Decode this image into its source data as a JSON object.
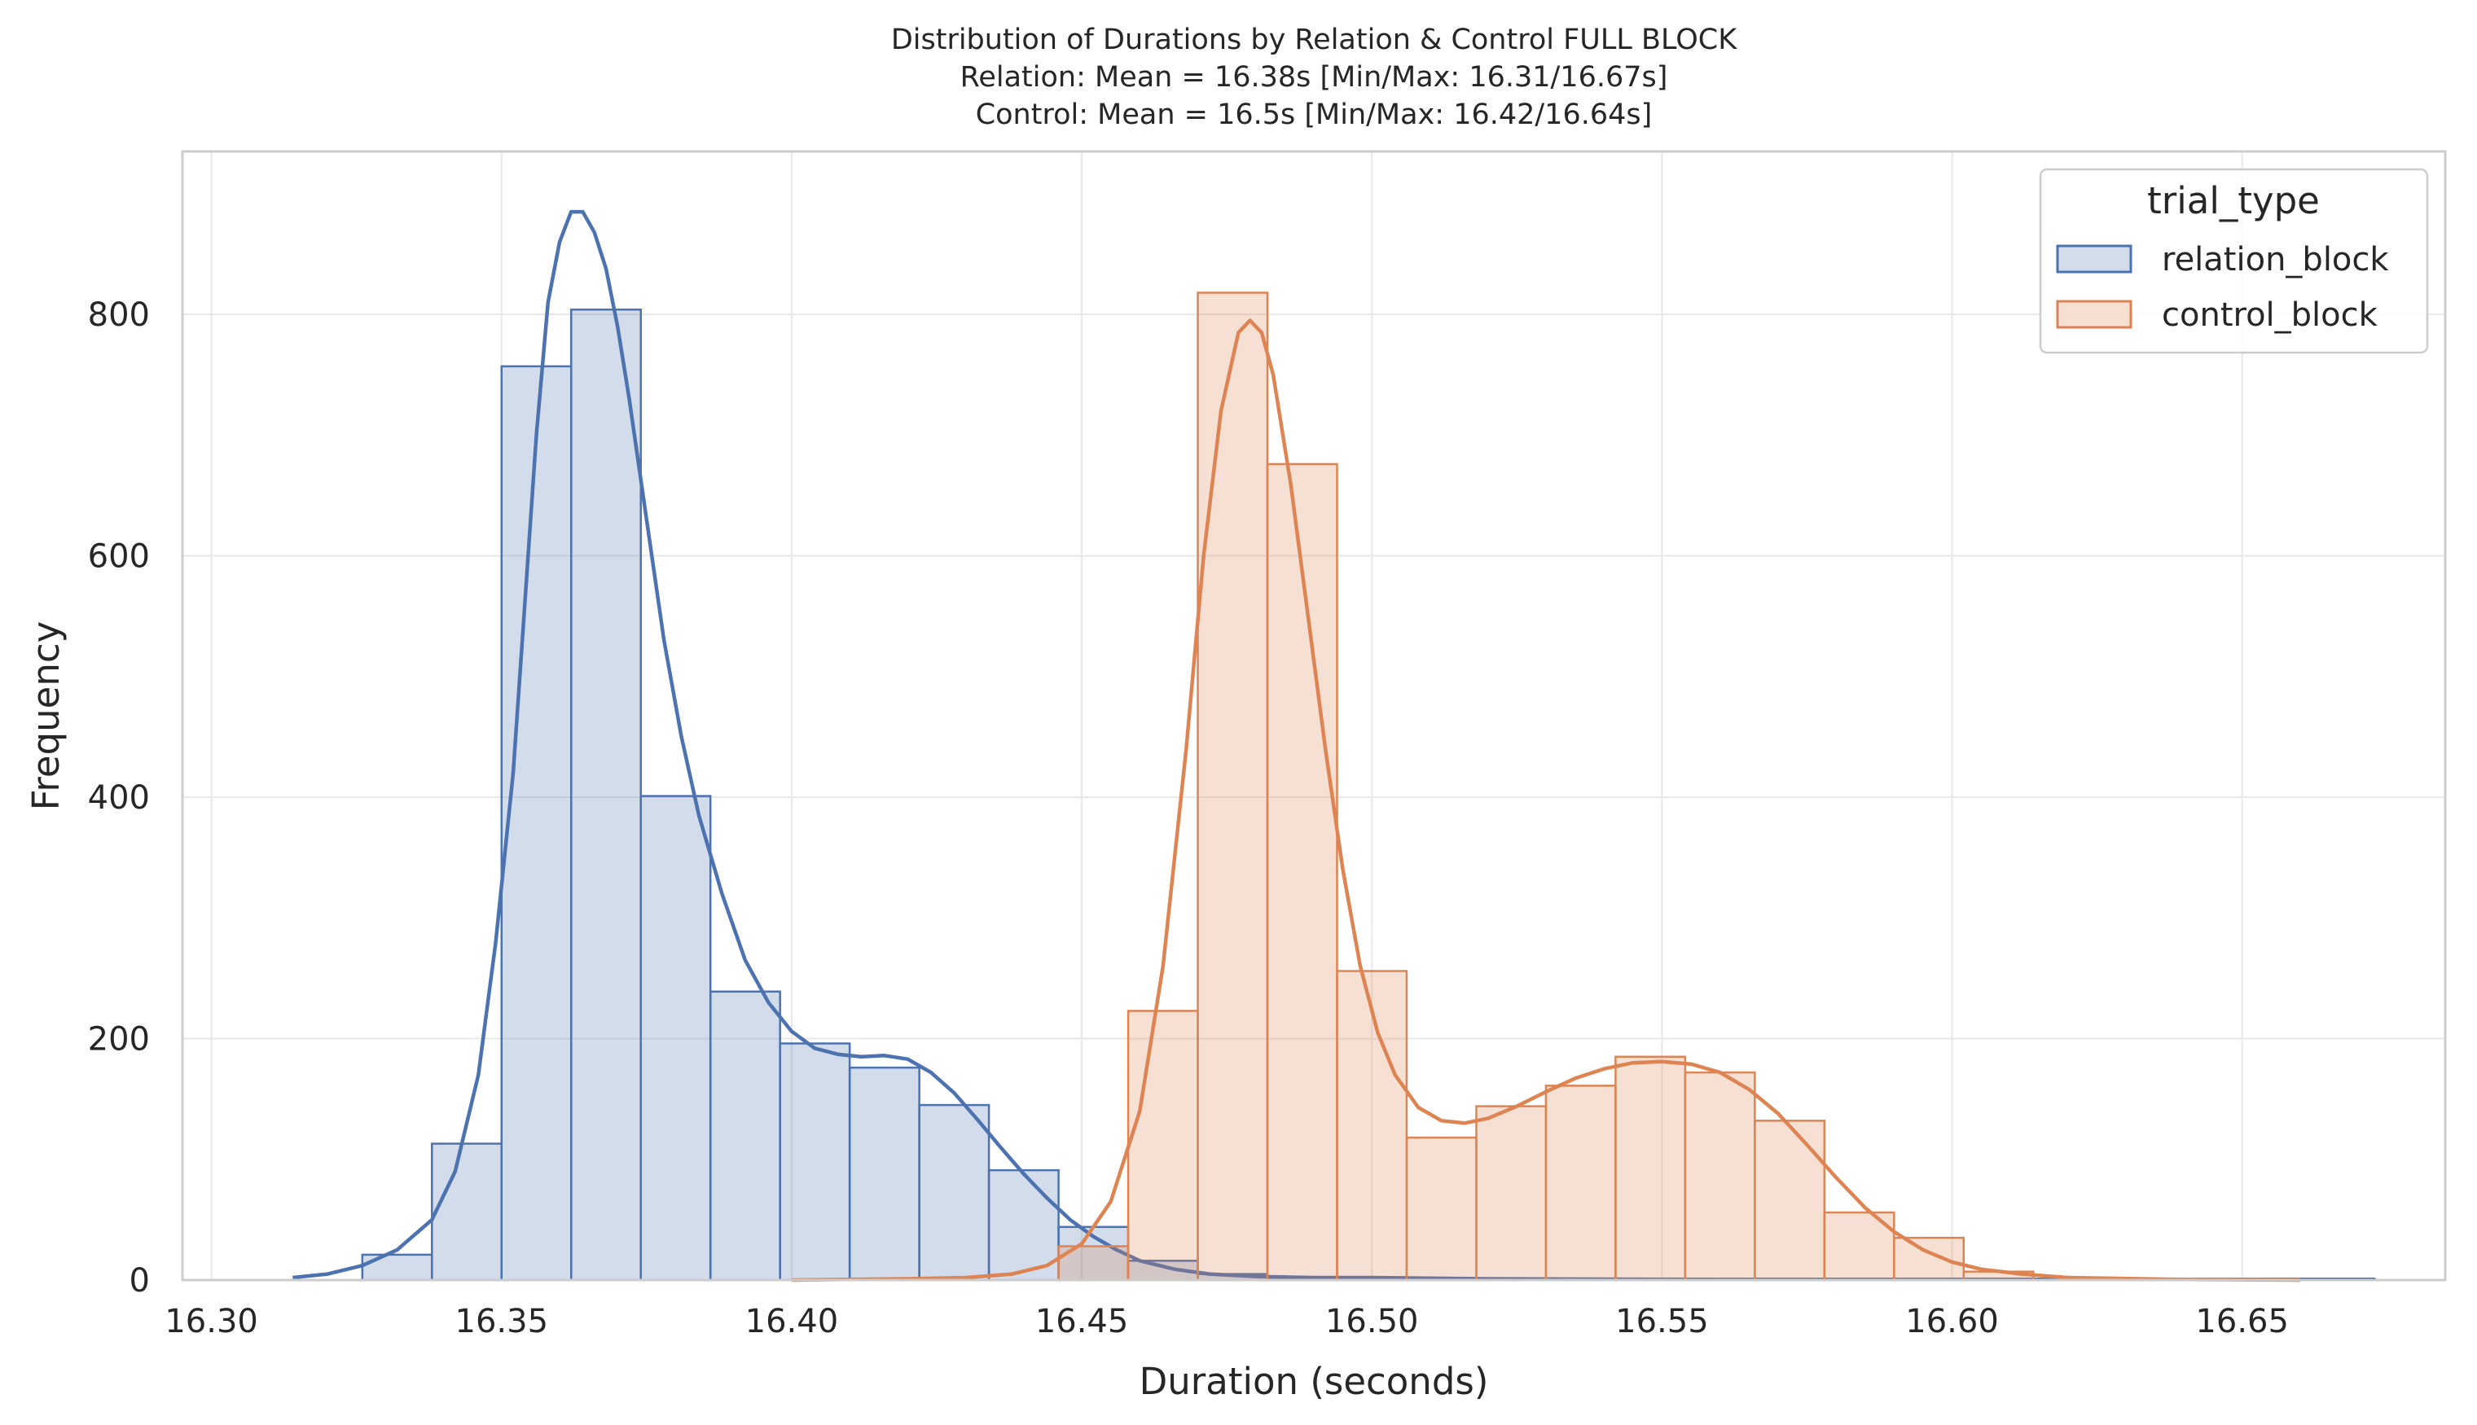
{
  "chart_data": {
    "type": "histogram",
    "title_lines": [
      "Distribution of Durations by Relation & Control FULL BLOCK",
      "Relation: Mean = 16.38s [Min/Max: 16.31/16.67s]",
      "Control: Mean = 16.5s [Min/Max: 16.42/16.64s]"
    ],
    "xlabel": "Duration (seconds)",
    "ylabel": "Frequency",
    "xlim": [
      16.295,
      16.685
    ],
    "ylim": [
      0,
      935
    ],
    "x_ticks": [
      16.3,
      16.35,
      16.4,
      16.45,
      16.5,
      16.55,
      16.6,
      16.65
    ],
    "x_tick_labels": [
      "16.30",
      "16.35",
      "16.40",
      "16.45",
      "16.50",
      "16.55",
      "16.60",
      "16.65"
    ],
    "y_ticks": [
      0,
      200,
      400,
      600,
      800
    ],
    "y_tick_labels": [
      "0",
      "200",
      "400",
      "600",
      "800"
    ],
    "grid": true,
    "legend": {
      "title": "trial_type",
      "position": "top-right",
      "entries": [
        "relation_block",
        "control_block"
      ]
    },
    "series": [
      {
        "name": "relation_block",
        "color": "#4c72b0",
        "fill": "rgba(76,114,176,0.25)",
        "bins": [
          {
            "x0": 16.326,
            "x1": 16.338,
            "count": 21
          },
          {
            "x0": 16.338,
            "x1": 16.35,
            "count": 113
          },
          {
            "x0": 16.35,
            "x1": 16.362,
            "count": 757
          },
          {
            "x0": 16.362,
            "x1": 16.374,
            "count": 804
          },
          {
            "x0": 16.374,
            "x1": 16.386,
            "count": 401
          },
          {
            "x0": 16.386,
            "x1": 16.398,
            "count": 239
          },
          {
            "x0": 16.398,
            "x1": 16.41,
            "count": 196
          },
          {
            "x0": 16.41,
            "x1": 16.422,
            "count": 176
          },
          {
            "x0": 16.422,
            "x1": 16.434,
            "count": 145
          },
          {
            "x0": 16.434,
            "x1": 16.446,
            "count": 91
          },
          {
            "x0": 16.446,
            "x1": 16.458,
            "count": 44
          },
          {
            "x0": 16.458,
            "x1": 16.47,
            "count": 16
          },
          {
            "x0": 16.47,
            "x1": 16.482,
            "count": 5
          },
          {
            "x0": 16.482,
            "x1": 16.494,
            "count": 2
          },
          {
            "x0": 16.494,
            "x1": 16.506,
            "count": 1
          },
          {
            "x0": 16.506,
            "x1": 16.518,
            "count": 1
          }
        ],
        "kde": [
          [
            16.314,
            2
          ],
          [
            16.32,
            5
          ],
          [
            16.326,
            12
          ],
          [
            16.332,
            25
          ],
          [
            16.338,
            50
          ],
          [
            16.342,
            90
          ],
          [
            16.346,
            170
          ],
          [
            16.349,
            280
          ],
          [
            16.352,
            420
          ],
          [
            16.354,
            560
          ],
          [
            16.356,
            700
          ],
          [
            16.358,
            810
          ],
          [
            16.36,
            860
          ],
          [
            16.362,
            885
          ],
          [
            16.364,
            885
          ],
          [
            16.366,
            868
          ],
          [
            16.368,
            838
          ],
          [
            16.37,
            790
          ],
          [
            16.372,
            730
          ],
          [
            16.375,
            630
          ],
          [
            16.378,
            530
          ],
          [
            16.381,
            450
          ],
          [
            16.384,
            385
          ],
          [
            16.388,
            320
          ],
          [
            16.392,
            265
          ],
          [
            16.396,
            230
          ],
          [
            16.4,
            206
          ],
          [
            16.404,
            192
          ],
          [
            16.408,
            187
          ],
          [
            16.412,
            185
          ],
          [
            16.416,
            186
          ],
          [
            16.42,
            183
          ],
          [
            16.424,
            172
          ],
          [
            16.428,
            155
          ],
          [
            16.432,
            133
          ],
          [
            16.436,
            110
          ],
          [
            16.44,
            88
          ],
          [
            16.444,
            68
          ],
          [
            16.448,
            50
          ],
          [
            16.452,
            36
          ],
          [
            16.456,
            25
          ],
          [
            16.46,
            16
          ],
          [
            16.466,
            9
          ],
          [
            16.472,
            5
          ],
          [
            16.48,
            3
          ],
          [
            16.49,
            2
          ],
          [
            16.5,
            2
          ],
          [
            16.52,
            1
          ],
          [
            16.56,
            0.5
          ],
          [
            16.62,
            0.5
          ],
          [
            16.673,
            0.5
          ]
        ]
      },
      {
        "name": "control_block",
        "color": "#dd8452",
        "fill": "rgba(221,132,82,0.25)",
        "bins": [
          {
            "x0": 16.446,
            "x1": 16.458,
            "count": 28
          },
          {
            "x0": 16.458,
            "x1": 16.47,
            "count": 223
          },
          {
            "x0": 16.47,
            "x1": 16.482,
            "count": 818
          },
          {
            "x0": 16.482,
            "x1": 16.494,
            "count": 676
          },
          {
            "x0": 16.494,
            "x1": 16.506,
            "count": 256
          },
          {
            "x0": 16.506,
            "x1": 16.518,
            "count": 118
          },
          {
            "x0": 16.518,
            "x1": 16.53,
            "count": 144
          },
          {
            "x0": 16.53,
            "x1": 16.542,
            "count": 161
          },
          {
            "x0": 16.542,
            "x1": 16.554,
            "count": 185
          },
          {
            "x0": 16.554,
            "x1": 16.566,
            "count": 172
          },
          {
            "x0": 16.566,
            "x1": 16.578,
            "count": 132
          },
          {
            "x0": 16.578,
            "x1": 16.59,
            "count": 56
          },
          {
            "x0": 16.59,
            "x1": 16.602,
            "count": 35
          },
          {
            "x0": 16.602,
            "x1": 16.614,
            "count": 7
          }
        ],
        "kde": [
          [
            16.4,
            0
          ],
          [
            16.42,
            1
          ],
          [
            16.43,
            2
          ],
          [
            16.438,
            5
          ],
          [
            16.444,
            12
          ],
          [
            16.45,
            30
          ],
          [
            16.455,
            65
          ],
          [
            16.46,
            140
          ],
          [
            16.464,
            260
          ],
          [
            16.468,
            440
          ],
          [
            16.471,
            600
          ],
          [
            16.474,
            720
          ],
          [
            16.477,
            785
          ],
          [
            16.479,
            795
          ],
          [
            16.481,
            785
          ],
          [
            16.483,
            750
          ],
          [
            16.486,
            660
          ],
          [
            16.489,
            550
          ],
          [
            16.492,
            440
          ],
          [
            16.495,
            340
          ],
          [
            16.498,
            260
          ],
          [
            16.501,
            205
          ],
          [
            16.504,
            170
          ],
          [
            16.508,
            143
          ],
          [
            16.512,
            132
          ],
          [
            16.516,
            130
          ],
          [
            16.52,
            134
          ],
          [
            16.525,
            144
          ],
          [
            16.53,
            156
          ],
          [
            16.535,
            167
          ],
          [
            16.54,
            175
          ],
          [
            16.545,
            180
          ],
          [
            16.55,
            181
          ],
          [
            16.555,
            179
          ],
          [
            16.56,
            172
          ],
          [
            16.565,
            158
          ],
          [
            16.57,
            138
          ],
          [
            16.575,
            112
          ],
          [
            16.58,
            85
          ],
          [
            16.585,
            60
          ],
          [
            16.59,
            40
          ],
          [
            16.595,
            25
          ],
          [
            16.6,
            15
          ],
          [
            16.605,
            9
          ],
          [
            16.612,
            5
          ],
          [
            16.62,
            2
          ],
          [
            16.64,
            0.5
          ],
          [
            16.66,
            0
          ]
        ]
      }
    ]
  }
}
